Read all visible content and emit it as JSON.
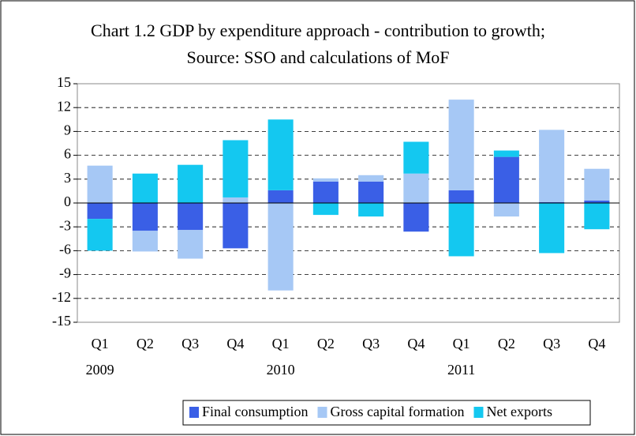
{
  "chart_data": {
    "type": "stacked_bar",
    "title": "Chart 1.2 GDP by expenditure approach - contribution to growth; Source: SSO and calculations of MoF",
    "categories": [
      "Q1",
      "Q2",
      "Q3",
      "Q4",
      "Q1",
      "Q2",
      "Q3",
      "Q4",
      "Q1",
      "Q2",
      "Q3",
      "Q4"
    ],
    "year_labels": [
      "2009",
      null,
      null,
      null,
      "2010",
      null,
      null,
      null,
      "2011",
      null,
      null,
      null
    ],
    "series": [
      {
        "name": "Final consumption",
        "color": "#3a5fe6",
        "values": [
          -2.0,
          -3.5,
          -3.4,
          -5.7,
          1.6,
          2.7,
          2.7,
          -3.6,
          1.6,
          5.8,
          0.1,
          0.3
        ]
      },
      {
        "name": "Gross capital formation",
        "color": "#a6c8f5",
        "values": [
          4.7,
          -2.6,
          -3.6,
          0.7,
          -11.0,
          0.4,
          0.8,
          3.7,
          11.4,
          -1.7,
          9.1,
          4.0
        ]
      },
      {
        "name": "Net exports",
        "color": "#14c8f0",
        "values": [
          -4.0,
          3.7,
          4.8,
          7.2,
          8.9,
          -1.5,
          -1.7,
          4.0,
          -6.7,
          0.8,
          -6.3,
          -3.3
        ]
      }
    ],
    "ylim": [
      -15,
      15
    ],
    "yticks": [
      -15,
      -12,
      -9,
      -6,
      -3,
      0,
      3,
      6,
      9,
      12,
      15
    ],
    "grid": true,
    "legend": "bottom"
  }
}
